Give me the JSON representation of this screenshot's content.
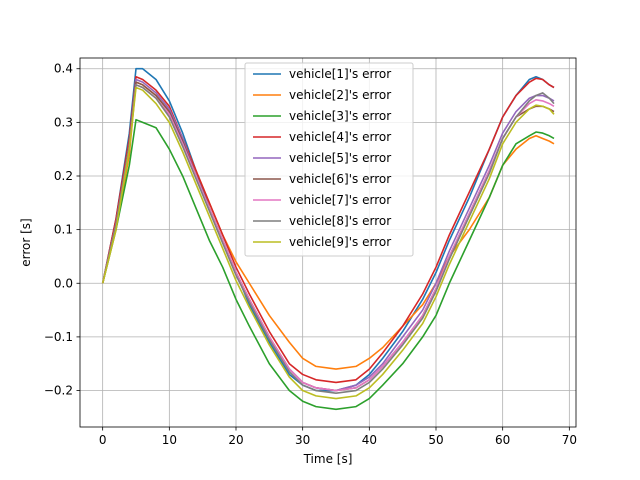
{
  "chart_data": {
    "type": "line",
    "title": "",
    "xlabel": "Time [s]",
    "ylabel": "error [s]",
    "xlim": [
      -3.4,
      71.0
    ],
    "ylim": [
      -0.268,
      0.42
    ],
    "xticks": [
      0,
      10,
      20,
      30,
      40,
      50,
      60,
      70
    ],
    "xtick_labels": [
      "0",
      "10",
      "20",
      "30",
      "40",
      "50",
      "60",
      "70"
    ],
    "yticks": [
      -0.2,
      -0.1,
      0.0,
      0.1,
      0.2,
      0.3,
      0.4
    ],
    "ytick_labels": [
      "−0.2",
      "−0.1",
      "0.0",
      "0.1",
      "0.2",
      "0.3",
      "0.4"
    ],
    "grid": true,
    "legend_position": "top-center",
    "series": [
      {
        "name": "vehicle[1]'s error",
        "color": "#1f77b4",
        "x": [
          0,
          2,
          4,
          5,
          6,
          8,
          10,
          12,
          14,
          16,
          18,
          20,
          22,
          25,
          28,
          30,
          32,
          35,
          38,
          40,
          42,
          45,
          48,
          50,
          52,
          55,
          58,
          60,
          62,
          64,
          65,
          66,
          67,
          67.7
        ],
        "y": [
          0,
          0.12,
          0.28,
          0.4,
          0.4,
          0.38,
          0.34,
          0.28,
          0.21,
          0.14,
          0.08,
          0.02,
          -0.04,
          -0.11,
          -0.17,
          -0.19,
          -0.2,
          -0.2,
          -0.19,
          -0.17,
          -0.14,
          -0.09,
          -0.03,
          0.02,
          0.08,
          0.16,
          0.25,
          0.31,
          0.35,
          0.38,
          0.385,
          0.38,
          0.37,
          0.365
        ]
      },
      {
        "name": "vehicle[2]'s error",
        "color": "#ff7f0e",
        "x": [
          0,
          2,
          4,
          5,
          6,
          8,
          10,
          12,
          14,
          16,
          18,
          20,
          22,
          25,
          28,
          30,
          32,
          35,
          38,
          40,
          42,
          45,
          48,
          50,
          52,
          55,
          58,
          60,
          62,
          64,
          65,
          66,
          67,
          67.7
        ],
        "y": [
          0,
          0.1,
          0.24,
          0.375,
          0.37,
          0.35,
          0.32,
          0.27,
          0.21,
          0.15,
          0.09,
          0.04,
          0.0,
          -0.06,
          -0.11,
          -0.14,
          -0.155,
          -0.16,
          -0.155,
          -0.14,
          -0.12,
          -0.08,
          -0.04,
          0.0,
          0.05,
          0.1,
          0.16,
          0.22,
          0.25,
          0.27,
          0.275,
          0.27,
          0.265,
          0.26
        ]
      },
      {
        "name": "vehicle[3]'s error",
        "color": "#2ca02c",
        "x": [
          0,
          2,
          4,
          5,
          6,
          8,
          10,
          12,
          14,
          16,
          18,
          20,
          22,
          25,
          28,
          30,
          32,
          35,
          38,
          40,
          42,
          45,
          48,
          50,
          52,
          55,
          58,
          60,
          62,
          64,
          65,
          66,
          67,
          67.7
        ],
        "y": [
          0,
          0.1,
          0.22,
          0.305,
          0.3,
          0.29,
          0.25,
          0.2,
          0.14,
          0.08,
          0.03,
          -0.03,
          -0.08,
          -0.15,
          -0.2,
          -0.22,
          -0.23,
          -0.235,
          -0.23,
          -0.215,
          -0.19,
          -0.15,
          -0.1,
          -0.06,
          0.0,
          0.08,
          0.16,
          0.22,
          0.26,
          0.275,
          0.282,
          0.28,
          0.275,
          0.27
        ]
      },
      {
        "name": "vehicle[4]'s error",
        "color": "#d62728",
        "x": [
          0,
          2,
          4,
          5,
          6,
          8,
          10,
          12,
          14,
          16,
          18,
          20,
          22,
          25,
          28,
          30,
          32,
          35,
          38,
          40,
          42,
          45,
          48,
          50,
          52,
          55,
          58,
          60,
          62,
          64,
          65,
          66,
          67,
          67.7
        ],
        "y": [
          0,
          0.12,
          0.27,
          0.385,
          0.38,
          0.36,
          0.33,
          0.27,
          0.21,
          0.15,
          0.09,
          0.03,
          -0.02,
          -0.09,
          -0.15,
          -0.17,
          -0.18,
          -0.185,
          -0.18,
          -0.16,
          -0.13,
          -0.08,
          -0.02,
          0.03,
          0.09,
          0.17,
          0.25,
          0.31,
          0.35,
          0.375,
          0.382,
          0.38,
          0.37,
          0.365
        ]
      },
      {
        "name": "vehicle[5]'s error",
        "color": "#9467bd",
        "x": [
          0,
          2,
          4,
          5,
          6,
          8,
          10,
          12,
          14,
          16,
          18,
          20,
          22,
          25,
          28,
          30,
          32,
          35,
          38,
          40,
          42,
          45,
          48,
          50,
          52,
          55,
          58,
          60,
          62,
          64,
          65,
          66,
          67,
          67.7
        ],
        "y": [
          0,
          0.11,
          0.26,
          0.38,
          0.375,
          0.355,
          0.325,
          0.27,
          0.2,
          0.14,
          0.08,
          0.02,
          -0.03,
          -0.1,
          -0.16,
          -0.185,
          -0.195,
          -0.2,
          -0.19,
          -0.175,
          -0.15,
          -0.1,
          -0.05,
          0.0,
          0.06,
          0.14,
          0.22,
          0.28,
          0.32,
          0.345,
          0.35,
          0.35,
          0.345,
          0.34
        ]
      },
      {
        "name": "vehicle[6]'s error",
        "color": "#8c564b",
        "x": [
          0,
          2,
          4,
          5,
          6,
          8,
          10,
          12,
          14,
          16,
          18,
          20,
          22,
          25,
          28,
          30,
          32,
          35,
          38,
          40,
          42,
          45,
          48,
          50,
          52,
          55,
          58,
          60,
          62,
          64,
          65,
          66,
          67,
          67.7
        ],
        "y": [
          0,
          0.11,
          0.26,
          0.375,
          0.37,
          0.35,
          0.32,
          0.265,
          0.2,
          0.14,
          0.08,
          0.02,
          -0.03,
          -0.1,
          -0.16,
          -0.185,
          -0.195,
          -0.2,
          -0.195,
          -0.18,
          -0.155,
          -0.11,
          -0.06,
          -0.01,
          0.05,
          0.13,
          0.21,
          0.27,
          0.31,
          0.325,
          0.33,
          0.33,
          0.325,
          0.32
        ]
      },
      {
        "name": "vehicle[7]'s error",
        "color": "#e377c2",
        "x": [
          0,
          2,
          4,
          5,
          6,
          8,
          10,
          12,
          14,
          16,
          18,
          20,
          22,
          25,
          28,
          30,
          32,
          35,
          38,
          40,
          42,
          45,
          48,
          50,
          52,
          55,
          58,
          60,
          62,
          64,
          65,
          66,
          67,
          67.7
        ],
        "y": [
          0,
          0.11,
          0.255,
          0.37,
          0.365,
          0.345,
          0.315,
          0.26,
          0.2,
          0.14,
          0.08,
          0.02,
          -0.03,
          -0.1,
          -0.16,
          -0.185,
          -0.195,
          -0.2,
          -0.195,
          -0.18,
          -0.155,
          -0.11,
          -0.06,
          -0.01,
          0.05,
          0.13,
          0.21,
          0.27,
          0.31,
          0.335,
          0.342,
          0.34,
          0.335,
          0.33
        ]
      },
      {
        "name": "vehicle[8]'s error",
        "color": "#7f7f7f",
        "x": [
          0,
          2,
          4,
          5,
          6,
          8,
          10,
          12,
          14,
          16,
          18,
          20,
          22,
          25,
          28,
          30,
          32,
          35,
          38,
          40,
          42,
          45,
          48,
          50,
          52,
          55,
          58,
          60,
          62,
          64,
          65,
          66,
          67,
          67.7
        ],
        "y": [
          0,
          0.11,
          0.255,
          0.37,
          0.365,
          0.345,
          0.31,
          0.255,
          0.195,
          0.135,
          0.075,
          0.015,
          -0.035,
          -0.105,
          -0.165,
          -0.19,
          -0.2,
          -0.205,
          -0.2,
          -0.185,
          -0.16,
          -0.115,
          -0.065,
          -0.015,
          0.045,
          0.125,
          0.205,
          0.27,
          0.31,
          0.34,
          0.35,
          0.355,
          0.345,
          0.335
        ]
      },
      {
        "name": "vehicle[9]'s error",
        "color": "#bcbd22",
        "x": [
          0,
          2,
          4,
          5,
          6,
          8,
          10,
          12,
          14,
          16,
          18,
          20,
          22,
          25,
          28,
          30,
          32,
          35,
          38,
          40,
          42,
          45,
          48,
          50,
          52,
          55,
          58,
          60,
          62,
          64,
          65,
          66,
          67,
          67.7
        ],
        "y": [
          0,
          0.1,
          0.25,
          0.365,
          0.36,
          0.335,
          0.3,
          0.245,
          0.185,
          0.125,
          0.065,
          0.005,
          -0.045,
          -0.115,
          -0.175,
          -0.2,
          -0.21,
          -0.215,
          -0.21,
          -0.195,
          -0.17,
          -0.125,
          -0.075,
          -0.025,
          0.035,
          0.115,
          0.195,
          0.26,
          0.3,
          0.325,
          0.332,
          0.33,
          0.325,
          0.315
        ]
      }
    ]
  }
}
